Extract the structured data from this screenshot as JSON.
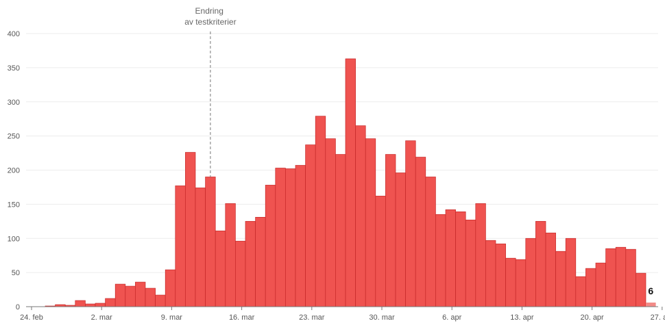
{
  "chart_data": {
    "type": "bar",
    "x_start": "24. feb",
    "x_tick_labels": [
      "24. feb",
      "2. mar",
      "9. mar",
      "16. mar",
      "23. mar",
      "30. mar",
      "6. apr",
      "13. apr",
      "20. apr",
      "27. apr"
    ],
    "y_tick_labels": [
      "0",
      "50",
      "100",
      "150",
      "200",
      "250",
      "300",
      "350",
      "400"
    ],
    "ylim": [
      0,
      400
    ],
    "grid": true,
    "values": [
      1,
      3,
      2,
      9,
      4,
      5,
      12,
      33,
      30,
      36,
      27,
      17,
      54,
      177,
      226,
      174,
      190,
      111,
      151,
      96,
      125,
      131,
      178,
      203,
      202,
      207,
      237,
      279,
      246,
      223,
      363,
      265,
      246,
      162,
      223,
      196,
      243,
      219,
      190,
      135,
      142,
      139,
      127,
      151,
      97,
      92,
      71,
      69,
      100,
      125,
      108,
      81,
      100,
      44,
      56,
      64,
      85,
      87,
      84,
      49
    ],
    "provisional": {
      "value": 6,
      "label": "6"
    },
    "bar_color": "#ef5350",
    "bar_stroke": "#c62828",
    "provisional_color": "#f28b88",
    "annotation": {
      "lines": [
        "Endring",
        "av testkriterier"
      ],
      "after_bar_index": 16
    }
  }
}
